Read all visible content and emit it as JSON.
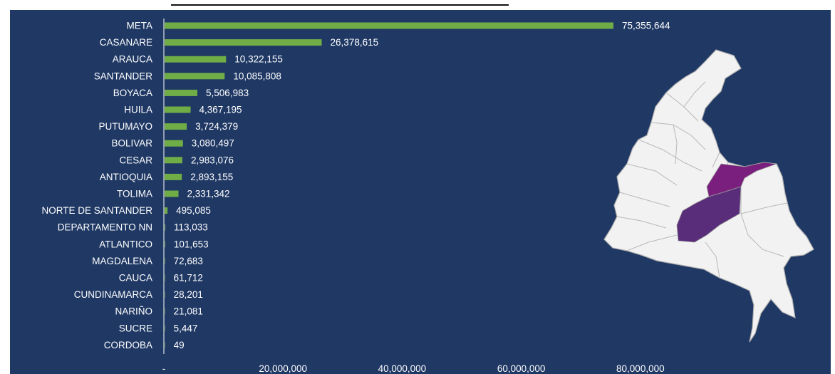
{
  "chart_data": {
    "type": "bar",
    "orientation": "horizontal",
    "categories": [
      "META",
      "CASANARE",
      "ARAUCA",
      "SANTANDER",
      "BOYACA",
      "HUILA",
      "PUTUMAYO",
      "BOLIVAR",
      "CESAR",
      "ANTIOQUIA",
      "TOLIMA",
      "NORTE DE SANTANDER",
      "DEPARTAMENTO NN",
      "ATLANTICO",
      "MAGDALENA",
      "CAUCA",
      "CUNDINAMARCA",
      "NARIÑO",
      "SUCRE",
      "CORDOBA"
    ],
    "values": [
      75355644,
      26378615,
      10322155,
      10085808,
      5506983,
      4367195,
      3724379,
      3080497,
      2983076,
      2893155,
      2331342,
      495085,
      113033,
      101653,
      72683,
      61712,
      28201,
      21081,
      5447,
      49
    ],
    "value_labels": [
      "75,355,644",
      "26,378,615",
      "10,322,155",
      "10,085,808",
      "5,506,983",
      "4,367,195",
      "3,724,379",
      "3,080,497",
      "2,983,076",
      "2,893,155",
      "2,331,342",
      "495,085",
      "113,033",
      "101,653",
      "72,683",
      "61,712",
      "28,201",
      "21,081",
      "5,447",
      "49"
    ],
    "xlim": [
      0,
      80000000
    ],
    "x_ticks": [
      0,
      20000000,
      40000000,
      60000000,
      80000000
    ],
    "x_tick_labels": [
      "-",
      "20,000,000",
      "40,000,000",
      "60,000,000",
      "80,000,000"
    ],
    "title": "",
    "xlabel": "",
    "ylabel": "",
    "grid": false,
    "colors": {
      "bar": "#70ad47",
      "background": "#1f3864",
      "text": "#ffffff"
    }
  },
  "map": {
    "name": "colombia-map",
    "colors": {
      "land": "#f2f2f2",
      "border": "#b0b0b0",
      "highlight_north": "#7b1f7f",
      "highlight_south": "#5a2d7a"
    }
  }
}
